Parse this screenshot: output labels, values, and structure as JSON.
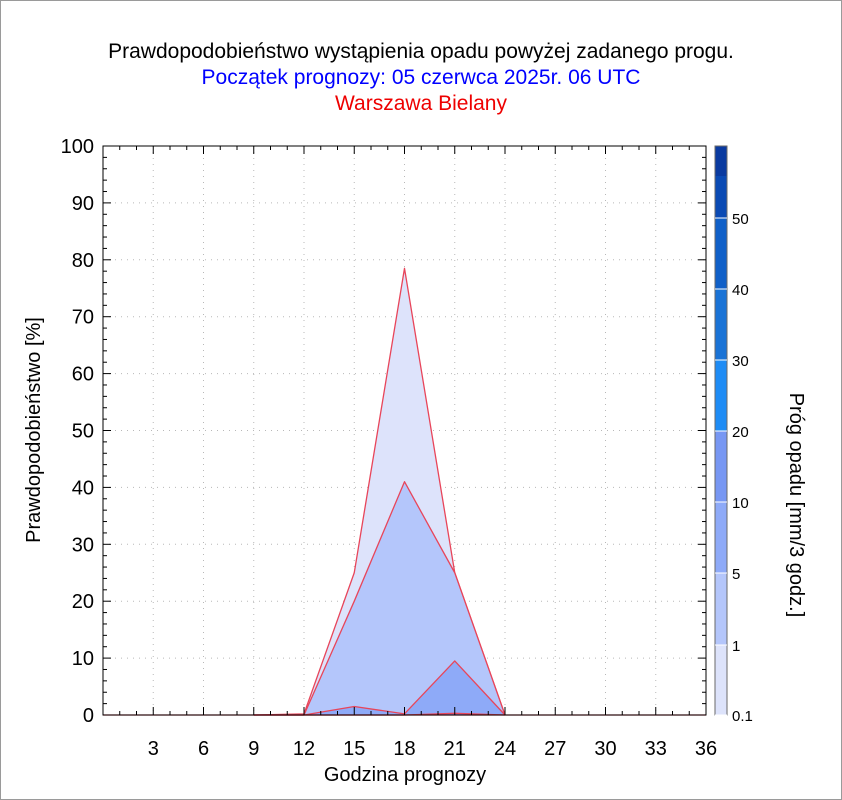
{
  "titles": {
    "title": "Prawdopodobieństwo wystąpienia opadu powyżej zadanego progu.",
    "subtitle": "Początek prognozy: 05 czerwca 2025r. 06 UTC",
    "location": "Warszawa Bielany"
  },
  "colors": {
    "title": "#000000",
    "subtitle": "#0000ff",
    "location": "#ee0000",
    "series_outline": "#e8455a"
  },
  "chart_data": {
    "type": "area",
    "xlabel": "Godzina prognozy",
    "ylabel": "Prawdopodobieństwo [%]",
    "xlim": [
      0,
      36
    ],
    "ylim": [
      0,
      100
    ],
    "x_ticks": [
      3,
      6,
      9,
      12,
      15,
      18,
      21,
      24,
      27,
      30,
      33,
      36
    ],
    "y_ticks": [
      0,
      10,
      20,
      30,
      40,
      50,
      60,
      70,
      80,
      90,
      100
    ],
    "grid": true,
    "x": [
      9,
      12,
      15,
      18,
      21,
      24
    ],
    "series": [
      {
        "threshold": "0.1",
        "color": "#dde3fb",
        "values": [
          0,
          0.2,
          25,
          78.5,
          25,
          0
        ]
      },
      {
        "threshold": "1",
        "color": "#b4c6fb",
        "values": [
          0,
          0,
          20,
          41,
          25,
          0
        ]
      },
      {
        "threshold": "5",
        "color": "#8eaaf8",
        "values": [
          0,
          0,
          1.5,
          0.2,
          9.5,
          0
        ]
      },
      {
        "threshold": "10",
        "color": "#7797f3",
        "values": [
          0,
          0,
          0,
          0,
          0.3,
          0
        ]
      }
    ],
    "colorbar": {
      "label": "Próg opadu [mm/3 godz.]",
      "ticks": [
        "0.1",
        "1",
        "5",
        "10",
        "20",
        "30",
        "40",
        "50"
      ],
      "colors": [
        "#dde3fb",
        "#b4c6fb",
        "#8eaaf8",
        "#7797f3",
        "#1e8cf5",
        "#1a73d6",
        "#1060c8",
        "#0a4ab4",
        "#0a3aa0"
      ]
    }
  }
}
